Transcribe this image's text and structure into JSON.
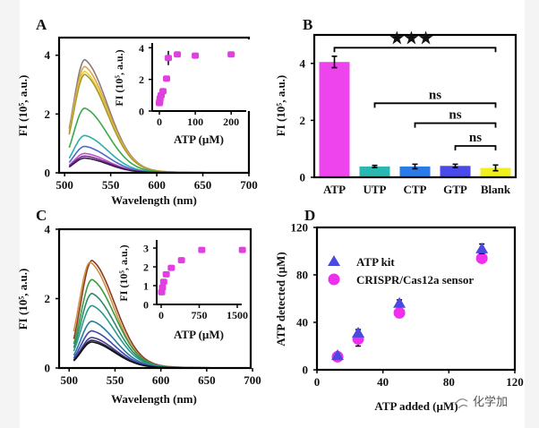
{
  "watermark": "化学加",
  "chart_data": [
    {
      "panel": "A",
      "type": "line",
      "xlabel": "Wavelength (nm)",
      "ylabel": "FI (10⁵, a.u.)",
      "xlim": [
        494,
        700
      ],
      "ylim": [
        0,
        4.6
      ],
      "xticks": [
        500,
        550,
        600,
        650,
        700
      ],
      "yticks": [
        0,
        2,
        4
      ],
      "wavelength_range": [
        505,
        690
      ],
      "series": [
        {
          "peak_wavelength": 522,
          "peak_fi": 3.85,
          "color": "#8a7a7a"
        },
        {
          "peak_wavelength": 522,
          "peak_fi": 3.62,
          "color": "#e0a640"
        },
        {
          "peak_wavelength": 522,
          "peak_fi": 3.45,
          "color": "#e8d23a"
        },
        {
          "peak_wavelength": 522,
          "peak_fi": 3.35,
          "color": "#a89a30"
        },
        {
          "peak_wavelength": 522,
          "peak_fi": 2.2,
          "color": "#3da84a"
        },
        {
          "peak_wavelength": 522,
          "peak_fi": 1.27,
          "color": "#2ab0a8"
        },
        {
          "peak_wavelength": 522,
          "peak_fi": 0.9,
          "color": "#4a6ad0"
        },
        {
          "peak_wavelength": 522,
          "peak_fi": 0.66,
          "color": "#c050c0"
        },
        {
          "peak_wavelength": 522,
          "peak_fi": 0.57,
          "color": "#6a2a8a"
        },
        {
          "peak_wavelength": 522,
          "peak_fi": 0.5,
          "color": "#3a1a50"
        }
      ],
      "inset": {
        "type": "scatter",
        "xlabel": "ATP (µM)",
        "ylabel": "FI (10⁵, a.u.)",
        "xlim": [
          -20,
          242
        ],
        "ylim": [
          0,
          4.3
        ],
        "xticks": [
          0,
          100,
          200
        ],
        "yticks": [
          0,
          2,
          4
        ],
        "color": "#e040e0",
        "x": [
          0,
          1,
          2,
          5,
          10,
          20,
          25,
          50,
          100,
          200
        ],
        "y": [
          0.5,
          0.6,
          0.8,
          1.0,
          1.25,
          2.05,
          3.35,
          3.58,
          3.5,
          3.58
        ],
        "err": [
          0.1,
          0.1,
          0.1,
          0.15,
          0.2,
          0.15,
          0.45,
          0.05,
          0.1,
          0.05
        ]
      }
    },
    {
      "panel": "B",
      "type": "bar",
      "ylabel": "FI (10⁵, a.u.)",
      "ylim": [
        0,
        5
      ],
      "yticks": [
        0,
        2,
        4
      ],
      "categories": [
        "ATP",
        "UTP",
        "CTP",
        "GTP",
        "Blank"
      ],
      "values": [
        4.05,
        0.38,
        0.38,
        0.4,
        0.33
      ],
      "errors": [
        0.2,
        0.04,
        0.08,
        0.06,
        0.1
      ],
      "colors": [
        "#ee44ee",
        "#2ab8b0",
        "#2a7ae8",
        "#4a4ae8",
        "#f0f020"
      ],
      "significance": [
        {
          "from": "ATP",
          "to": "Blank",
          "label": "★★★",
          "level": 4.55
        },
        {
          "from": "UTP",
          "to": "Blank",
          "label": "ns",
          "level": 2.6
        },
        {
          "from": "CTP",
          "to": "Blank",
          "label": "ns",
          "level": 1.9
        },
        {
          "from": "GTP",
          "to": "Blank",
          "label": "ns",
          "level": 1.1
        }
      ]
    },
    {
      "panel": "C",
      "type": "line",
      "xlabel": "Wavelength (nm)",
      "ylabel": "FI (10⁵, a.u.)",
      "xlim": [
        489,
        698
      ],
      "ylim": [
        0,
        4
      ],
      "xticks": [
        500,
        550,
        600,
        650,
        700
      ],
      "yticks": [
        0,
        2,
        4
      ],
      "wavelength_range": [
        505,
        690
      ],
      "series": [
        {
          "peak_wavelength": 525,
          "peak_fi": 3.1,
          "color": "#8a3a20"
        },
        {
          "peak_wavelength": 523,
          "peak_fi": 3.05,
          "color": "#d09040"
        },
        {
          "peak_wavelength": 525,
          "peak_fi": 2.55,
          "color": "#3a9a40"
        },
        {
          "peak_wavelength": 525,
          "peak_fi": 2.15,
          "color": "#2a8a6a"
        },
        {
          "peak_wavelength": 525,
          "peak_fi": 1.8,
          "color": "#2a9a8a"
        },
        {
          "peak_wavelength": 525,
          "peak_fi": 1.35,
          "color": "#2a7aa0"
        },
        {
          "peak_wavelength": 525,
          "peak_fi": 1.07,
          "color": "#3a4ab0"
        },
        {
          "peak_wavelength": 525,
          "peak_fi": 0.88,
          "color": "#4a3a90"
        },
        {
          "peak_wavelength": 525,
          "peak_fi": 0.8,
          "color": "#2a2a50"
        },
        {
          "peak_wavelength": 525,
          "peak_fi": 0.75,
          "color": "#111111"
        }
      ],
      "inset": {
        "type": "scatter",
        "xlabel": "ATP (µM)",
        "ylabel": "FI (10⁵, a.u.)",
        "xlim": [
          -88,
          1588
        ],
        "ylim": [
          0,
          3.43
        ],
        "xticks": [
          0,
          750,
          1500
        ],
        "yticks": [
          0,
          1,
          2,
          3
        ],
        "color": "#e040e0",
        "x": [
          10,
          25,
          50,
          100,
          200,
          400,
          800,
          1600
        ],
        "y": [
          0.65,
          0.9,
          1.2,
          1.6,
          1.95,
          2.35,
          2.9,
          2.9
        ],
        "err": [
          0.05,
          0.05,
          0.05,
          0.05,
          0.05,
          0.05,
          0.05,
          0.08
        ]
      }
    },
    {
      "panel": "D",
      "type": "scatter",
      "xlabel": "ATP added (µM)",
      "ylabel": "ATP detected (µM)",
      "xlim": [
        0,
        120
      ],
      "ylim": [
        0,
        120
      ],
      "xticks": [
        0,
        40,
        80,
        120
      ],
      "yticks": [
        0,
        40,
        80,
        120
      ],
      "legend": "upper-left",
      "series": [
        {
          "name": "ATP kit",
          "marker": "triangle",
          "color": "#4a4ae0",
          "x": [
            12.5,
            25,
            50,
            100
          ],
          "y": [
            12,
            31,
            56,
            102
          ],
          "err": [
            1,
            3,
            3,
            4
          ]
        },
        {
          "name": "CRISPR/Cas12a sensor",
          "marker": "circle",
          "color": "#ee30ee",
          "x": [
            12.5,
            25,
            50,
            100
          ],
          "y": [
            11,
            26,
            48,
            94
          ],
          "err": [
            1,
            6,
            2,
            2
          ]
        }
      ]
    }
  ]
}
